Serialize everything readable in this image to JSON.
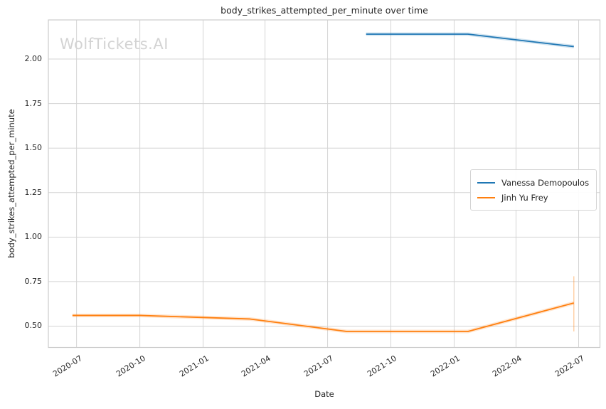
{
  "watermark": "WolfTickets.AI",
  "colors": {
    "background": "#ffffff",
    "grid": "#d4d4d4",
    "plot_border": "#cccccc",
    "text": "#262626",
    "watermark": "#d3d3d3",
    "legend_border": "#d4d4d4",
    "series_blue": "#1f77b4",
    "series_orange": "#ff7f0e"
  },
  "chart_data": {
    "type": "line",
    "title": "body_strikes_attempted_per_minute over time",
    "xlabel": "Date",
    "ylabel": "body_strikes_attempted_per_minute",
    "grid": true,
    "legend_position": "center-right inside plot",
    "x_range": [
      "2020-05-21",
      "2022-08-01"
    ],
    "y_range": [
      0.38,
      2.22
    ],
    "x_ticks": [
      {
        "label": "2020-07",
        "date": "2020-07-01"
      },
      {
        "label": "2020-10",
        "date": "2020-10-01"
      },
      {
        "label": "2021-01",
        "date": "2021-01-01"
      },
      {
        "label": "2021-04",
        "date": "2021-04-01"
      },
      {
        "label": "2021-07",
        "date": "2021-07-01"
      },
      {
        "label": "2021-10",
        "date": "2021-10-01"
      },
      {
        "label": "2022-01",
        "date": "2022-01-01"
      },
      {
        "label": "2022-04",
        "date": "2022-04-01"
      },
      {
        "label": "2022-07",
        "date": "2022-07-01"
      }
    ],
    "y_ticks": [
      {
        "label": "0.50",
        "value": 0.5
      },
      {
        "label": "0.75",
        "value": 0.75
      },
      {
        "label": "1.00",
        "value": 1.0
      },
      {
        "label": "1.25",
        "value": 1.25
      },
      {
        "label": "1.50",
        "value": 1.5
      },
      {
        "label": "1.75",
        "value": 1.75
      },
      {
        "label": "2.00",
        "value": 2.0
      }
    ],
    "series": [
      {
        "name": "Vanessa Demopoulos",
        "color": "#1f77b4",
        "points": [
          {
            "date": "2021-08-26",
            "value": 2.14
          },
          {
            "date": "2022-01-21",
            "value": 2.14
          },
          {
            "date": "2022-06-24",
            "value": 2.07
          }
        ]
      },
      {
        "name": "Jinh Yu Frey",
        "color": "#ff7f0e",
        "points": [
          {
            "date": "2020-06-25",
            "value": 0.56
          },
          {
            "date": "2020-10-01",
            "value": 0.56
          },
          {
            "date": "2021-03-10",
            "value": 0.54
          },
          {
            "date": "2021-07-29",
            "value": 0.47
          },
          {
            "date": "2022-01-21",
            "value": 0.47
          },
          {
            "date": "2022-06-24",
            "value": 0.63
          }
        ],
        "error_bar": {
          "date": "2022-06-24",
          "low": 0.47,
          "high": 0.78
        }
      }
    ]
  }
}
